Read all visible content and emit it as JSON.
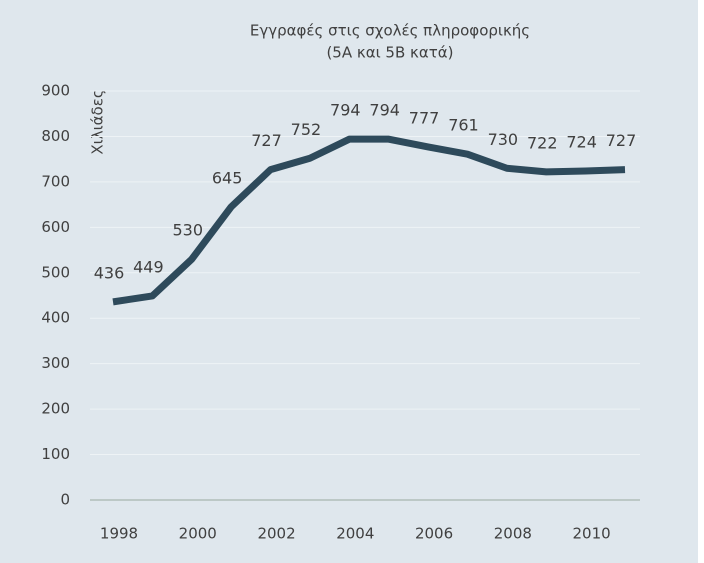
{
  "chart_data": {
    "type": "line",
    "title": [
      "Εγγραφές στις σχολές πληροφορικής",
      "(5Α και 5Β κατά)"
    ],
    "ylabel": "Χιλιάδες",
    "x": [
      1998,
      1999,
      2000,
      2001,
      2002,
      2003,
      2004,
      2005,
      2006,
      2007,
      2008,
      2009,
      2010,
      2011
    ],
    "series": [
      {
        "name": "Εγγραφές",
        "color": "#2e4a5b",
        "values": [
          436,
          449,
          530,
          645,
          727,
          752,
          794,
          794,
          777,
          761,
          730,
          722,
          724,
          727
        ]
      }
    ],
    "xlim": [
      1998,
      2011
    ],
    "xticks": [
      1998,
      2000,
      2002,
      2004,
      2006,
      2008,
      2010
    ],
    "ylim": [
      0,
      900
    ],
    "yticks": [
      0,
      100,
      200,
      300,
      400,
      500,
      600,
      700,
      800,
      900
    ],
    "grid": true,
    "data_labels": true
  }
}
